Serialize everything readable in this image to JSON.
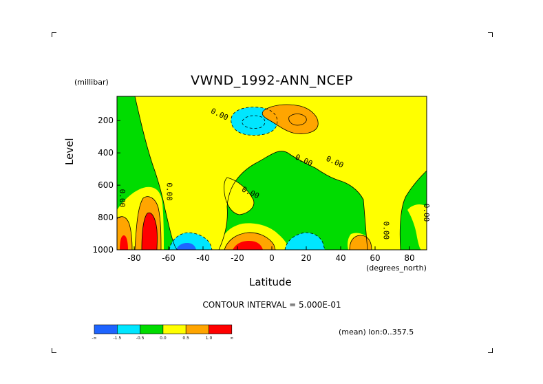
{
  "chart_data": {
    "type": "heatmap",
    "title": "VWND_1992-ANN_NCEP",
    "xlabel": "Latitude",
    "ylabel": "Level",
    "x_units": "(degrees_north)",
    "y_units": "(millibar)",
    "xlim": [
      -90,
      90
    ],
    "ylim": [
      1000,
      50
    ],
    "y_inverted": true,
    "x_ticks": [
      "-80",
      "-60",
      "-40",
      "-20",
      "0",
      "20",
      "40",
      "60",
      "80"
    ],
    "y_ticks": [
      "200",
      "400",
      "600",
      "800",
      "1000"
    ],
    "contour_interval_label": "CONTOUR INTERVAL = 5.000E-01",
    "contour_labels": [
      {
        "text": "0.00",
        "lat": -31,
        "level": 175
      },
      {
        "text": "0.00",
        "lat": -61,
        "level": 640
      },
      {
        "text": "0.00",
        "lat": -90,
        "level": 680
      },
      {
        "text": "0.00",
        "lat": -13,
        "level": 660
      },
      {
        "text": "0.00",
        "lat": 18,
        "level": 460
      },
      {
        "text": "0.00",
        "lat": 36,
        "level": 470
      },
      {
        "text": "0.00",
        "lat": 65,
        "level": 880
      },
      {
        "text": "0.00",
        "lat": 89,
        "level": 770
      }
    ],
    "legend": {
      "colors": [
        "#1e64ff",
        "#00e6ff",
        "#00dc00",
        "#ffff00",
        "#ffa500",
        "#ff0000"
      ],
      "labels": [
        "-∞",
        "-1.5",
        "-0.5",
        "0.0",
        "0.5",
        "1.0",
        "∞"
      ]
    },
    "mean_label": "(mean) lon:0..357.5"
  }
}
